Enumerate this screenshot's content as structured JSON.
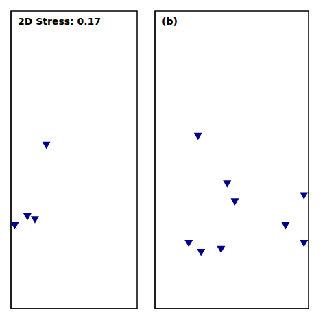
{
  "chart_data": [
    {
      "type": "scatter",
      "annotation": "2D Stress: 0.17",
      "x": [
        0.28,
        0.03,
        0.13,
        0.19
      ],
      "values": [
        0.55,
        0.28,
        0.31,
        0.3
      ],
      "color": "#00008B",
      "marker": "triangle_down",
      "xlim": [
        0,
        1
      ],
      "ylim": [
        0,
        1
      ],
      "tick_labels": false,
      "grid": false
    },
    {
      "type": "scatter",
      "annotation": "(b)",
      "x": [
        0.28,
        0.47,
        0.52,
        0.97,
        0.22,
        0.3,
        0.43,
        0.85,
        0.97
      ],
      "values": [
        0.58,
        0.42,
        0.36,
        0.38,
        0.22,
        0.19,
        0.2,
        0.28,
        0.22
      ],
      "color": "#00008B",
      "marker": "triangle_down",
      "xlim": [
        0,
        1
      ],
      "ylim": [
        0,
        1
      ],
      "tick_labels": false,
      "grid": false
    }
  ]
}
